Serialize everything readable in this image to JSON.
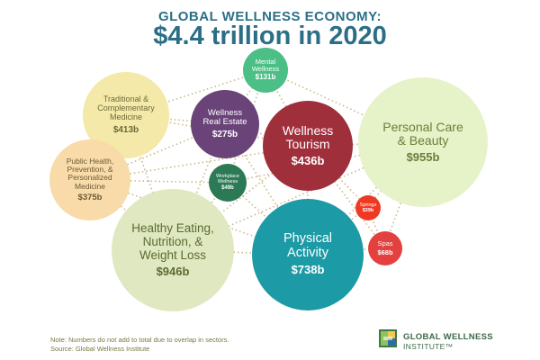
{
  "header": {
    "line1": "GLOBAL WELLNESS ECONOMY:",
    "line2": "$4.4 trillion in 2020"
  },
  "sectors": [
    {
      "id": "traditional",
      "label": "Traditional &\nComplementary\nMedicine",
      "value": "$413b",
      "color": "#f4e9a8",
      "text_color": "#6b6a3a"
    },
    {
      "id": "public-health",
      "label": "Public Health,\nPrevention, &\nPersonalized\nMedicine",
      "value": "$375b",
      "color": "#f8dba8",
      "text_color": "#6b5a36"
    },
    {
      "id": "real-estate",
      "label": "Wellness\nReal Estate",
      "value": "$275b",
      "color": "#6a4379",
      "text_color": "#ffffff"
    },
    {
      "id": "mental",
      "label": "Mental\nWellness",
      "value": "$131b",
      "color": "#4cbf86",
      "text_color": "#ffffff"
    },
    {
      "id": "workplace",
      "label": "Workplace\nWellness",
      "value": "$49b",
      "color": "#2c7a55",
      "text_color": "#ffffff"
    },
    {
      "id": "tourism",
      "label": "Wellness\nTourism",
      "value": "$436b",
      "color": "#a02f3c",
      "text_color": "#ffffff"
    },
    {
      "id": "personal-care",
      "label": "Personal Care\n& Beauty",
      "value": "$955b",
      "color": "#e6f2c8",
      "text_color": "#6b7f3a"
    },
    {
      "id": "healthy-eating",
      "label": "Healthy Eating,\nNutrition, &\nWeight Loss",
      "value": "$946b",
      "color": "#dfe8c0",
      "text_color": "#5b6b32"
    },
    {
      "id": "physical",
      "label": "Physical\nActivity",
      "value": "$738b",
      "color": "#1c9aa6",
      "text_color": "#ffffff"
    },
    {
      "id": "springs",
      "label": "Springs",
      "value": "$39b",
      "color": "#ee3a24",
      "text_color": "#ffffff"
    },
    {
      "id": "spas",
      "label": "Spas",
      "value": "$68b",
      "color": "#e2413f",
      "text_color": "#ffffff"
    }
  ],
  "footnote": {
    "line1": "Note: Numbers do not add to total due to overlap in sectors.",
    "line2": "Source: Global Wellness Institute"
  },
  "logo": {
    "line1": "GLOBAL WELLNESS",
    "line2": "INSTITUTE™"
  },
  "colors": {
    "title": "#2b6f86",
    "connector": "#c9b98a"
  }
}
